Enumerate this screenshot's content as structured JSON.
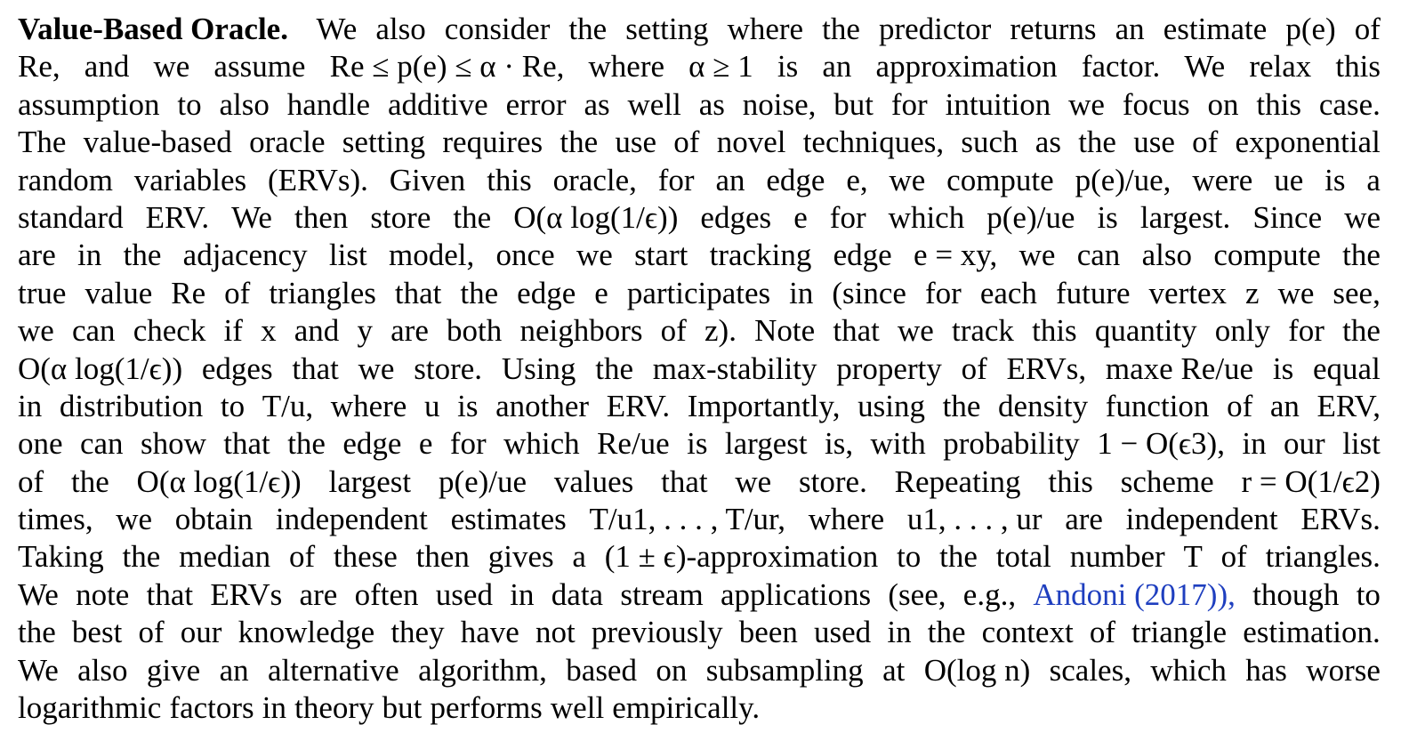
{
  "paragraph": {
    "heading": "Value-Based Oracle.",
    "lines": [
      [
        "We",
        "also",
        "consider",
        "the",
        "setting",
        "where",
        "the",
        "predictor",
        "returns",
        "an",
        "estimate",
        "p(e)",
        "of"
      ],
      [
        "Re,",
        "and",
        "we",
        "assume",
        "Re ≤ p(e) ≤ α · Re,",
        "where",
        "α ≥ 1",
        "is",
        "an",
        "approximation",
        "factor.",
        "We",
        "relax",
        "this"
      ],
      [
        "assumption",
        "to",
        "also",
        "handle",
        "additive",
        "error",
        "as",
        "well",
        "as",
        "noise,",
        "but",
        "for",
        "intuition",
        "we",
        "focus",
        "on",
        "this",
        "case."
      ],
      [
        "The",
        "value-based",
        "oracle",
        "setting",
        "requires",
        "the",
        "use",
        "of",
        "novel",
        "techniques,",
        "such",
        "as",
        "the",
        "use",
        "of",
        "exponential"
      ],
      [
        "random",
        "variables",
        "(ERVs).",
        "Given",
        "this",
        "oracle,",
        "for",
        "an",
        "edge",
        "e,",
        "we",
        "compute",
        "p(e)/ue,",
        "were",
        "ue",
        "is",
        "a"
      ],
      [
        "standard",
        "ERV.",
        "We",
        "then",
        "store",
        "the",
        "O(α log(1/ϵ))",
        "edges",
        "e",
        "for",
        "which",
        "p(e)/ue",
        "is",
        "largest.",
        "Since",
        "we"
      ],
      [
        "are",
        "in",
        "the",
        "adjacency",
        "list",
        "model,",
        "once",
        "we",
        "start",
        "tracking",
        "edge",
        "e = xy,",
        "we",
        "can",
        "also",
        "compute",
        "the"
      ],
      [
        "true",
        "value",
        "Re",
        "of",
        "triangles",
        "that",
        "the",
        "edge",
        "e",
        "participates",
        "in",
        "(since",
        "for",
        "each",
        "future",
        "vertex",
        "z",
        "we",
        "see,"
      ],
      [
        "we",
        "can",
        "check",
        "if",
        "x",
        "and",
        "y",
        "are",
        "both",
        "neighbors",
        "of",
        "z).",
        "Note",
        "that",
        "we",
        "track",
        "this",
        "quantity",
        "only",
        "for",
        "the"
      ],
      [
        "O(α log(1/ϵ))",
        "edges",
        "that",
        "we",
        "store.",
        "Using",
        "the",
        "max-stability",
        "property",
        "of",
        "ERVs,",
        "maxe Re/ue",
        "is",
        "equal"
      ],
      [
        "in",
        "distribution",
        "to",
        "T/u,",
        "where",
        "u",
        "is",
        "another",
        "ERV.",
        "Importantly,",
        "using",
        "the",
        "density",
        "function",
        "of",
        "an",
        "ERV,"
      ],
      [
        "one",
        "can",
        "show",
        "that",
        "the",
        "edge",
        "e",
        "for",
        "which",
        "Re/ue",
        "is",
        "largest",
        "is,",
        "with",
        "probability",
        "1 − O(ϵ3),",
        "in",
        "our",
        "list"
      ],
      [
        "of",
        "the",
        "O(α log(1/ϵ))",
        "largest",
        "p(e)/ue",
        "values",
        "that",
        "we",
        "store.",
        "Repeating",
        "this",
        "scheme",
        "r = O(1/ϵ2)"
      ],
      [
        "times,",
        "we",
        "obtain",
        "independent",
        "estimates",
        "T/u1, . . . , T/ur,",
        "where",
        "u1, . . . , ur",
        "are",
        "independent",
        "ERVs."
      ],
      [
        "Taking",
        "the",
        "median",
        "of",
        "these",
        "then",
        "gives",
        "a",
        "(1 ± ϵ)-approximation",
        "to",
        "the",
        "total",
        "number",
        "T",
        "of",
        "triangles."
      ],
      [
        "We",
        "note",
        "that",
        "ERVs",
        "are",
        "often",
        "used",
        "in",
        "data",
        "stream",
        "applications",
        "(see,",
        "e.g.,",
        "Andoni (2017)),",
        "though",
        "to"
      ],
      [
        "the",
        "best",
        "of",
        "our",
        "knowledge",
        "they",
        "have",
        "not",
        "previously",
        "been",
        "used",
        "in",
        "the",
        "context",
        "of",
        "triangle",
        "estimation."
      ],
      [
        "We",
        "also",
        "give",
        "an",
        "alternative",
        "algorithm,",
        "based",
        "on",
        "subsampling",
        "at",
        "O(log n)",
        "scales,",
        "which",
        "has",
        "worse"
      ],
      [
        "logarithmic",
        "factors",
        "in",
        "theory",
        "but",
        "performs",
        "well",
        "empirically."
      ]
    ],
    "citation": {
      "author": "Andoni",
      "year": "2017"
    }
  }
}
